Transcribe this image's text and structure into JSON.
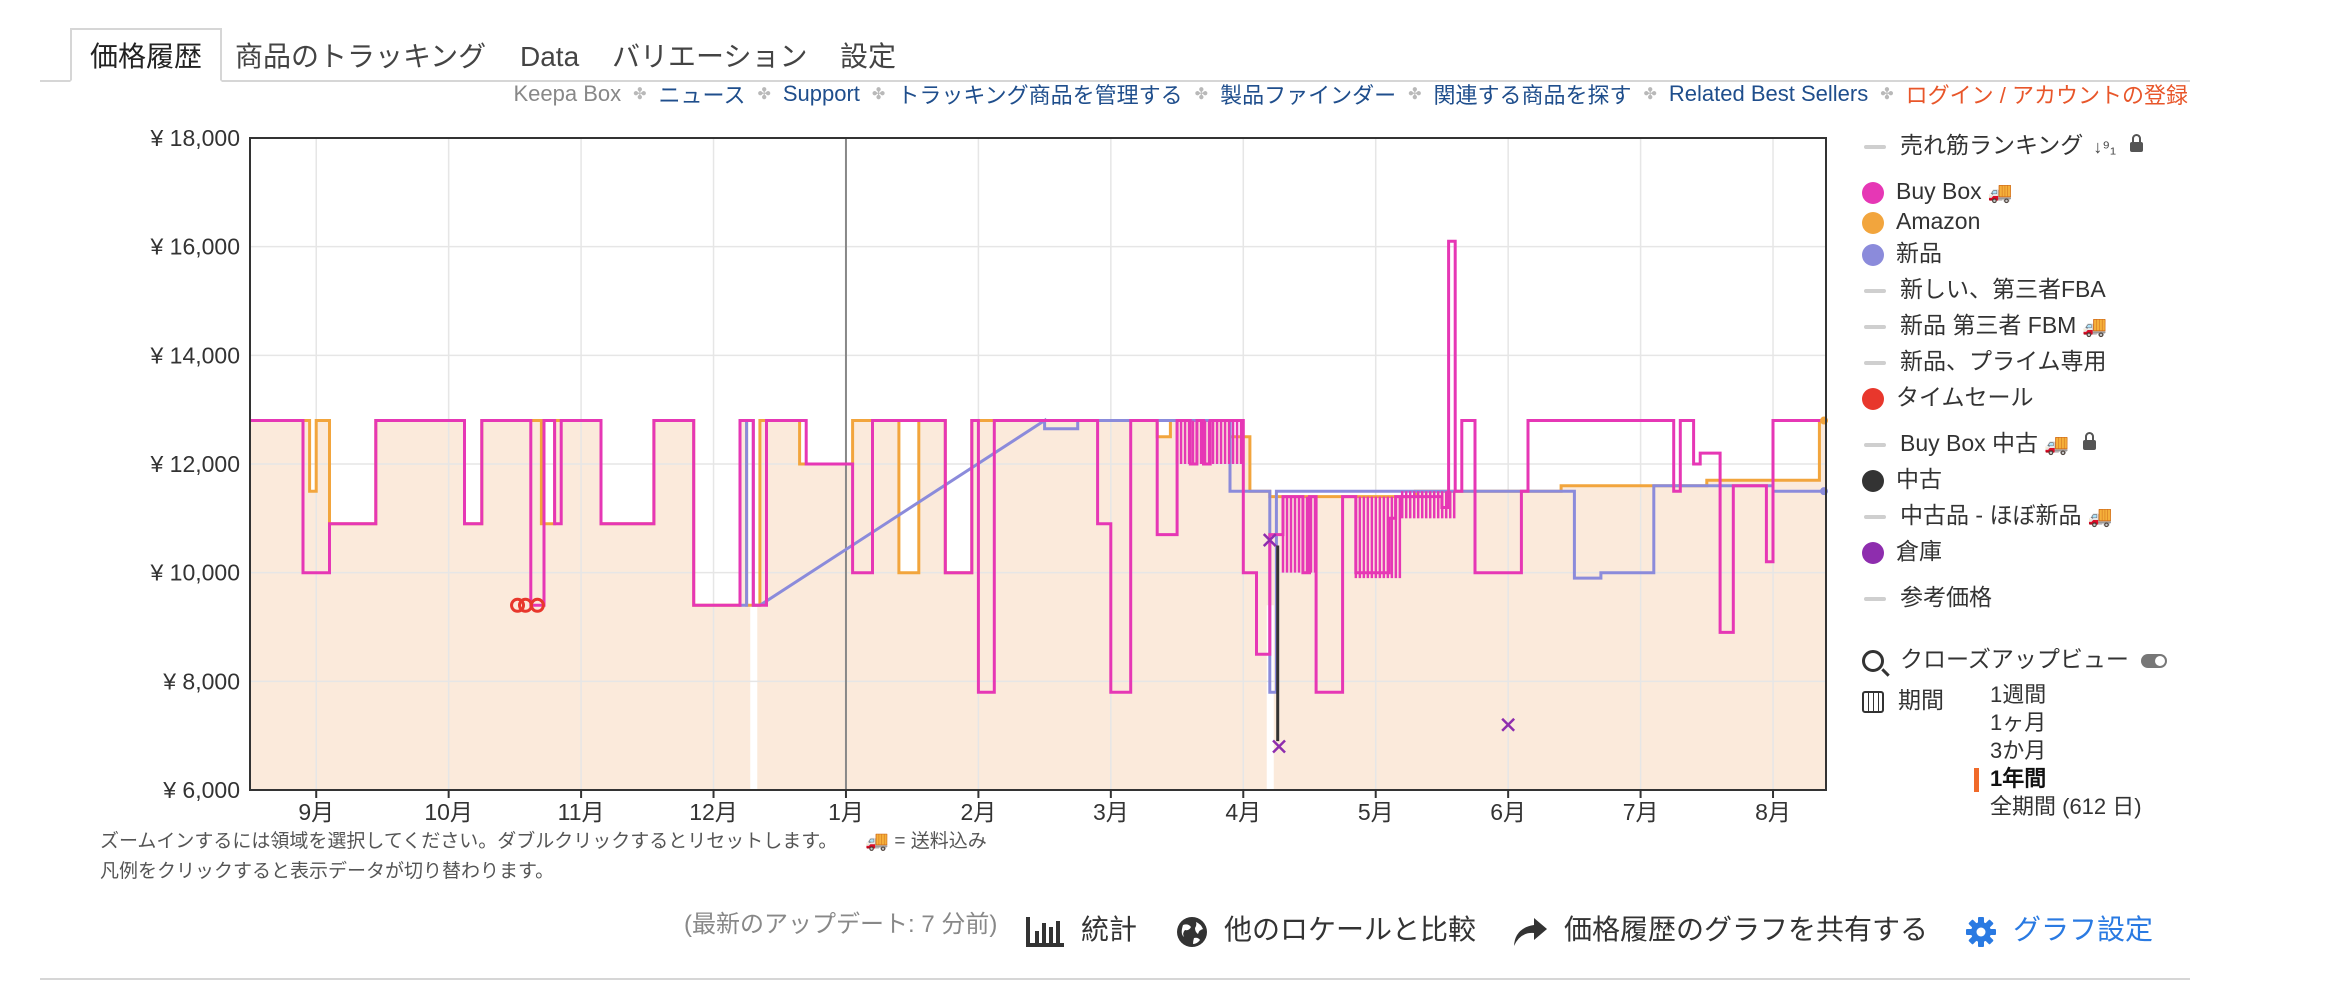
{
  "tabs": [
    {
      "label": "価格履歴",
      "active": true
    },
    {
      "label": "商品のトラッキング"
    },
    {
      "label": "Data"
    },
    {
      "label": "バリエーション"
    },
    {
      "label": "設定"
    }
  ],
  "links": [
    {
      "label": "Keepa Box",
      "muted": true
    },
    {
      "label": "ニュース"
    },
    {
      "label": "Support"
    },
    {
      "label": "トラッキング商品を管理する"
    },
    {
      "label": "製品ファインダー"
    },
    {
      "label": "関連する商品を探す"
    },
    {
      "label": "Related Best Sellers"
    },
    {
      "label": "ログイン / アカウントの登録",
      "login": true
    }
  ],
  "legend": {
    "items": [
      {
        "label": "売れ筋ランキング",
        "marker": "dash",
        "sort_icon": "↓⁹₁",
        "lock": true
      },
      {
        "label": "Buy Box",
        "marker": "dot",
        "color": "#e637b5",
        "truck": true
      },
      {
        "label": "Amazon",
        "marker": "dot",
        "color": "#f2a53d"
      },
      {
        "label": "新品",
        "marker": "dot",
        "color": "#8b8bdb"
      },
      {
        "label": "新しい、第三者FBA",
        "marker": "dash"
      },
      {
        "label": "新品 第三者 FBM",
        "marker": "dash",
        "truck": true
      },
      {
        "label": "新品、プライム専用",
        "marker": "dash"
      },
      {
        "label": "タイムセール",
        "marker": "dot",
        "color": "#e8372c"
      },
      {
        "label": "Buy Box 中古",
        "marker": "dash",
        "truck": true,
        "lock": true
      },
      {
        "label": "中古",
        "marker": "dot",
        "color": "#333333"
      },
      {
        "label": "中古品 - ほぼ新品",
        "marker": "dash",
        "truck": true
      },
      {
        "label": "倉庫",
        "marker": "dot",
        "color": "#8e2dae"
      },
      {
        "label": "参考価格",
        "marker": "dash"
      }
    ],
    "closeup": "クローズアップビュー",
    "period_label": "期間",
    "periods": [
      {
        "label": "1週間"
      },
      {
        "label": "1ヶ月"
      },
      {
        "label": "3か月"
      },
      {
        "label": "1年間",
        "selected": true
      },
      {
        "label": "全期間 (612 日)"
      }
    ],
    "truck_icon": "🚚"
  },
  "notes": {
    "zoom": "ズームインするには領域を選択してください。ダブルクリックするとリセットします。",
    "shipping": "🚚 = 送料込み",
    "legend_hint": "凡例をクリックすると表示データが切り替わります。"
  },
  "toolbar": {
    "update": "(最新のアップデート: 7 分前)",
    "stats": "統計",
    "compare": "他のロケールと比較",
    "share": "価格履歴のグラフを共有する",
    "settings": "グラフ設定"
  },
  "icons": {
    "stats": "bar-chart-icon",
    "compare": "globe-icon",
    "share": "share-arrow-icon",
    "settings": "gear-icon",
    "closeup": "search-icon",
    "period": "calendar-icon"
  },
  "chart_data": {
    "type": "line",
    "title": "",
    "xlabel": "",
    "ylabel": "",
    "currency_prefix": "¥",
    "ylim": [
      6000,
      18000
    ],
    "yticks": [
      6000,
      8000,
      10000,
      12000,
      14000,
      16000,
      18000
    ],
    "y_tick_labels": [
      "¥ 6,000",
      "¥ 8,000",
      "¥ 10,000",
      "¥ 12,000",
      "¥ 14,000",
      "¥ 16,000",
      "¥ 18,000"
    ],
    "x_domain_month_index": [
      -0.5,
      11.4
    ],
    "x_ticks": [
      {
        "label": "9月",
        "pos": 0
      },
      {
        "label": "10月",
        "pos": 1
      },
      {
        "label": "11月",
        "pos": 2
      },
      {
        "label": "12月",
        "pos": 3
      },
      {
        "label": "1月",
        "pos": 4
      },
      {
        "label": "2月",
        "pos": 5
      },
      {
        "label": "3月",
        "pos": 6
      },
      {
        "label": "4月",
        "pos": 7
      },
      {
        "label": "5月",
        "pos": 8
      },
      {
        "label": "6月",
        "pos": 9
      },
      {
        "label": "7月",
        "pos": 10
      },
      {
        "label": "8月",
        "pos": 11
      }
    ],
    "year_divider_at": 4,
    "grid": true,
    "legend_position": "right",
    "series": [
      {
        "name": "Amazon",
        "color": "#f2a53d",
        "area_fill": "#fbeadb",
        "step": true,
        "points": [
          [
            -0.5,
            12800
          ],
          [
            -0.05,
            12800
          ],
          [
            -0.05,
            11500
          ],
          [
            0.0,
            11500
          ],
          [
            0.0,
            12800
          ],
          [
            0.1,
            12800
          ],
          [
            0.1,
            10900
          ],
          [
            0.45,
            10900
          ],
          [
            0.45,
            12800
          ],
          [
            1.12,
            12800
          ],
          [
            1.12,
            10900
          ],
          [
            1.25,
            10900
          ],
          [
            1.25,
            12800
          ],
          [
            1.7,
            12800
          ],
          [
            1.7,
            10900
          ],
          [
            1.8,
            10900
          ],
          [
            1.8,
            12800
          ],
          [
            2.15,
            12800
          ],
          [
            2.15,
            10900
          ],
          [
            2.55,
            10900
          ],
          [
            2.55,
            12800
          ],
          [
            2.85,
            12800
          ],
          [
            2.85,
            9400
          ],
          [
            3.2,
            9400
          ],
          [
            3.2,
            12800
          ],
          [
            3.25,
            12800
          ],
          [
            3.25,
            9400
          ],
          [
            3.35,
            9400
          ],
          [
            3.35,
            12800
          ],
          [
            3.65,
            12800
          ],
          [
            3.65,
            12000
          ],
          [
            4.05,
            12000
          ],
          [
            4.05,
            12800
          ],
          [
            4.4,
            12800
          ],
          [
            4.4,
            10000
          ],
          [
            4.55,
            10000
          ],
          [
            4.55,
            12800
          ],
          [
            4.75,
            12800
          ],
          [
            4.75,
            10000
          ],
          [
            4.95,
            10000
          ],
          [
            4.95,
            12800
          ],
          [
            6.35,
            12800
          ],
          [
            6.35,
            12500
          ],
          [
            6.45,
            12500
          ],
          [
            6.45,
            12800
          ],
          [
            6.9,
            12800
          ],
          [
            6.9,
            12500
          ],
          [
            7.05,
            12500
          ],
          [
            7.05,
            11500
          ],
          [
            7.2,
            11500
          ],
          [
            7.2,
            11400
          ],
          [
            8.3,
            11400
          ],
          [
            8.3,
            11500
          ],
          [
            9.4,
            11500
          ],
          [
            9.4,
            11600
          ],
          [
            10.5,
            11600
          ],
          [
            10.5,
            11700
          ],
          [
            11.35,
            11700
          ],
          [
            11.35,
            12800
          ],
          [
            11.4,
            12800
          ]
        ]
      },
      {
        "name": "新品",
        "color": "#8b8bdb",
        "step": true,
        "points": [
          [
            3.2,
            12800
          ],
          [
            3.2,
            9400
          ],
          [
            3.25,
            9400
          ],
          [
            3.25,
            12800
          ],
          [
            3.3,
            12800
          ],
          [
            3.3,
            9400
          ],
          [
            3.35,
            9400
          ],
          [
            5.5,
            12800
          ],
          [
            5.5,
            12650
          ],
          [
            5.75,
            12650
          ],
          [
            5.75,
            12800
          ],
          [
            6.9,
            12800
          ],
          [
            6.9,
            11500
          ],
          [
            7.2,
            11500
          ],
          [
            7.2,
            7800
          ],
          [
            7.25,
            7800
          ],
          [
            7.25,
            11500
          ],
          [
            9.5,
            11500
          ],
          [
            9.5,
            9900
          ],
          [
            9.7,
            9900
          ],
          [
            9.7,
            10000
          ],
          [
            10.1,
            10000
          ],
          [
            10.1,
            11600
          ],
          [
            11.0,
            11600
          ],
          [
            11.0,
            11500
          ],
          [
            11.4,
            11500
          ]
        ]
      },
      {
        "name": "Buy Box",
        "color": "#e637b5",
        "step": true,
        "points": [
          [
            -0.5,
            12800
          ],
          [
            -0.1,
            12800
          ],
          [
            -0.1,
            10000
          ],
          [
            0.1,
            10000
          ],
          [
            0.1,
            10900
          ],
          [
            0.45,
            10900
          ],
          [
            0.45,
            12800
          ],
          [
            1.12,
            12800
          ],
          [
            1.12,
            10900
          ],
          [
            1.25,
            10900
          ],
          [
            1.25,
            12800
          ],
          [
            1.62,
            12800
          ],
          [
            1.62,
            9400
          ],
          [
            1.72,
            9400
          ],
          [
            1.72,
            12800
          ],
          [
            1.8,
            12800
          ],
          [
            1.8,
            10900
          ],
          [
            1.85,
            10900
          ],
          [
            1.85,
            12800
          ],
          [
            2.15,
            12800
          ],
          [
            2.15,
            10900
          ],
          [
            2.55,
            10900
          ],
          [
            2.55,
            12800
          ],
          [
            2.85,
            12800
          ],
          [
            2.85,
            9400
          ],
          [
            3.2,
            9400
          ],
          [
            3.2,
            12800
          ],
          [
            3.3,
            12800
          ],
          [
            3.3,
            9400
          ],
          [
            3.4,
            9400
          ],
          [
            3.4,
            12800
          ],
          [
            3.7,
            12800
          ],
          [
            3.7,
            12000
          ],
          [
            4.05,
            12000
          ],
          [
            4.05,
            10000
          ],
          [
            4.2,
            10000
          ],
          [
            4.2,
            12800
          ],
          [
            4.75,
            12800
          ],
          [
            4.75,
            10000
          ],
          [
            4.95,
            10000
          ],
          [
            4.95,
            12800
          ],
          [
            5.0,
            12800
          ],
          [
            5.0,
            7800
          ],
          [
            5.12,
            7800
          ],
          [
            5.12,
            12800
          ],
          [
            5.9,
            12800
          ],
          [
            5.9,
            10900
          ],
          [
            6.0,
            10900
          ],
          [
            6.0,
            7800
          ],
          [
            6.15,
            7800
          ],
          [
            6.15,
            12800
          ],
          [
            6.35,
            12800
          ],
          [
            6.35,
            10700
          ],
          [
            6.5,
            10700
          ],
          [
            6.5,
            12800
          ],
          [
            6.6,
            12800
          ],
          [
            6.6,
            12000
          ],
          [
            6.65,
            12000
          ],
          [
            6.65,
            12800
          ],
          [
            6.7,
            12800
          ],
          [
            6.7,
            12000
          ],
          [
            6.75,
            12000
          ],
          [
            6.75,
            12800
          ],
          [
            7.0,
            12800
          ],
          [
            7.0,
            10000
          ],
          [
            7.1,
            10000
          ],
          [
            7.1,
            8500
          ],
          [
            7.2,
            8500
          ],
          [
            7.2,
            10700
          ],
          [
            7.3,
            10700
          ],
          [
            7.3,
            11400
          ],
          [
            7.45,
            11400
          ],
          [
            7.45,
            10000
          ],
          [
            7.5,
            10000
          ],
          [
            7.5,
            11400
          ],
          [
            7.55,
            11400
          ],
          [
            7.55,
            7800
          ],
          [
            7.75,
            7800
          ],
          [
            7.75,
            11400
          ],
          [
            7.85,
            11400
          ],
          [
            7.85,
            10000
          ],
          [
            8.1,
            10000
          ],
          [
            8.1,
            11000
          ],
          [
            8.15,
            11000
          ],
          [
            8.15,
            11400
          ],
          [
            8.5,
            11400
          ],
          [
            8.5,
            11200
          ],
          [
            8.55,
            11200
          ],
          [
            8.55,
            16100
          ],
          [
            8.6,
            16100
          ],
          [
            8.6,
            11500
          ],
          [
            8.65,
            11500
          ],
          [
            8.65,
            12800
          ],
          [
            8.75,
            12800
          ],
          [
            8.75,
            10000
          ],
          [
            9.1,
            10000
          ],
          [
            9.1,
            11500
          ],
          [
            9.15,
            11500
          ],
          [
            9.15,
            12800
          ],
          [
            10.25,
            12800
          ],
          [
            10.25,
            11500
          ],
          [
            10.3,
            11500
          ],
          [
            10.3,
            12800
          ],
          [
            10.4,
            12800
          ],
          [
            10.4,
            12000
          ],
          [
            10.45,
            12000
          ],
          [
            10.45,
            12200
          ],
          [
            10.6,
            12200
          ],
          [
            10.6,
            8900
          ],
          [
            10.7,
            8900
          ],
          [
            10.7,
            11600
          ],
          [
            10.95,
            11600
          ],
          [
            10.95,
            10200
          ],
          [
            11.0,
            10200
          ],
          [
            11.0,
            12800
          ],
          [
            11.4,
            12800
          ]
        ]
      }
    ],
    "dense_bands": [
      {
        "series": "Buy Box",
        "x_range": [
          6.5,
          7.0
        ],
        "y_range": [
          12000,
          12800
        ]
      },
      {
        "series": "Buy Box",
        "x_range": [
          7.3,
          7.55
        ],
        "y_range": [
          10000,
          11400
        ]
      },
      {
        "series": "Buy Box",
        "x_range": [
          7.85,
          8.2
        ],
        "y_range": [
          9900,
          11400
        ]
      },
      {
        "series": "Buy Box",
        "x_range": [
          8.2,
          8.6
        ],
        "y_range": [
          11000,
          11500
        ]
      }
    ],
    "markers": [
      {
        "series": "タイムセール",
        "shape": "ring",
        "color": "#e8372c",
        "points": [
          [
            1.52,
            9400
          ],
          [
            1.58,
            9400
          ],
          [
            1.67,
            9400
          ]
        ]
      },
      {
        "series": "倉庫",
        "shape": "x",
        "color": "#8e2dae",
        "points": [
          [
            7.2,
            10600
          ],
          [
            7.27,
            6800
          ],
          [
            9.0,
            7200
          ]
        ]
      },
      {
        "series": "中古",
        "shape": "line",
        "color": "#333333",
        "points": [
          [
            7.26,
            10500
          ],
          [
            7.26,
            6900
          ]
        ]
      }
    ],
    "gaps": [
      3.3,
      7.2
    ]
  }
}
